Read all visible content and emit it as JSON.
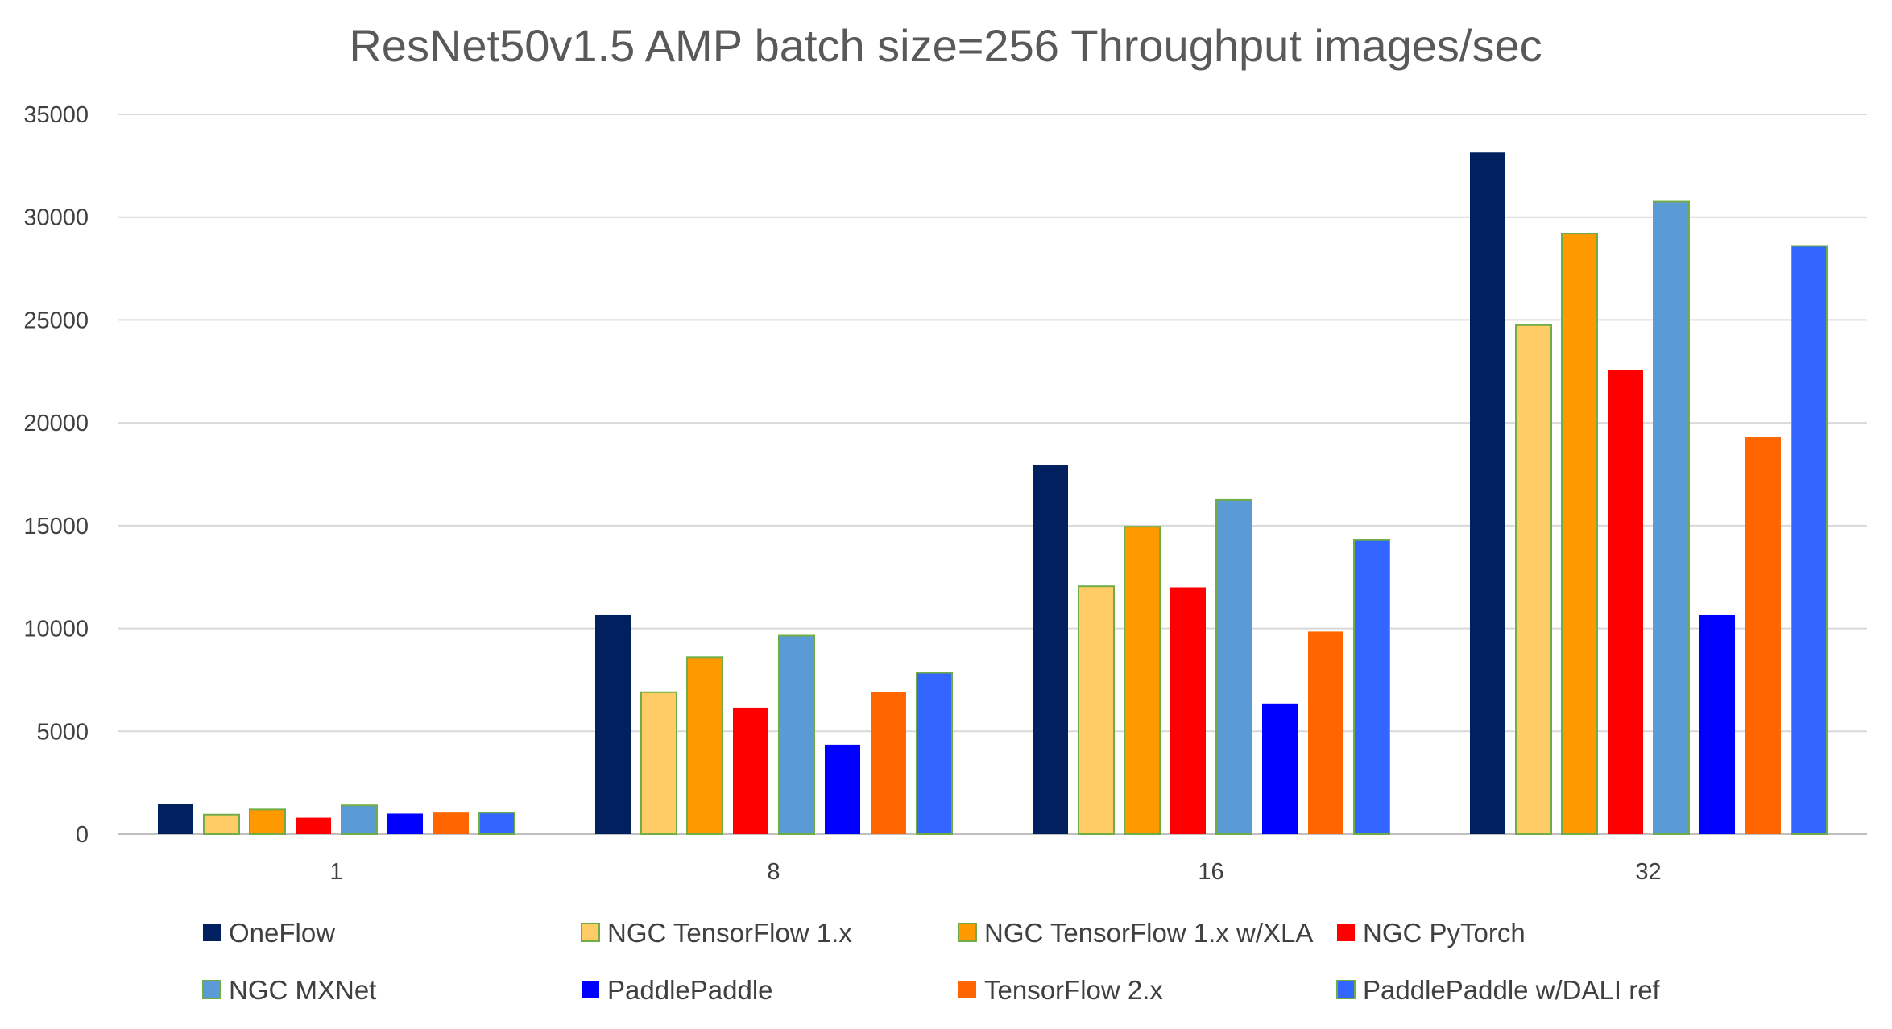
{
  "chart_data": {
    "type": "bar",
    "title": "ResNet50v1.5 AMP batch size=256 Throughput images/sec",
    "xlabel": "",
    "ylabel": "",
    "ylim": [
      0,
      35000
    ],
    "yticks": [
      0,
      5000,
      10000,
      15000,
      20000,
      25000,
      30000,
      35000
    ],
    "grid": true,
    "legend_position": "bottom",
    "categories": [
      "1",
      "8",
      "16",
      "32"
    ],
    "series": [
      {
        "name": "OneFlow",
        "color": "#002060",
        "values": [
          1450,
          10650,
          17950,
          33150
        ]
      },
      {
        "name": "NGC TensorFlow 1.x",
        "color": "#FFCC66",
        "values": [
          950,
          6900,
          12050,
          24750
        ]
      },
      {
        "name": "NGC TensorFlow 1.x w/XLA",
        "color": "#FF9900",
        "values": [
          1200,
          8600,
          14950,
          29200
        ]
      },
      {
        "name": "NGC PyTorch",
        "color": "#FF0000",
        "values": [
          800,
          6150,
          12000,
          22550
        ]
      },
      {
        "name": "NGC MXNet",
        "color": "#5B9BD5",
        "values": [
          1400,
          9650,
          16250,
          30750
        ]
      },
      {
        "name": "PaddlePaddle",
        "color": "#0000FF",
        "values": [
          1000,
          4350,
          6350,
          10650
        ]
      },
      {
        "name": "TensorFlow 2.x",
        "color": "#FF6600",
        "values": [
          1050,
          6900,
          9850,
          19300
        ]
      },
      {
        "name": "PaddlePaddle w/DALI ref",
        "color": "#3366FF",
        "values": [
          1050,
          7850,
          14300,
          28600
        ]
      }
    ],
    "outlined_series": [
      1,
      2,
      4,
      7
    ],
    "outline_color": "#70AD47"
  }
}
